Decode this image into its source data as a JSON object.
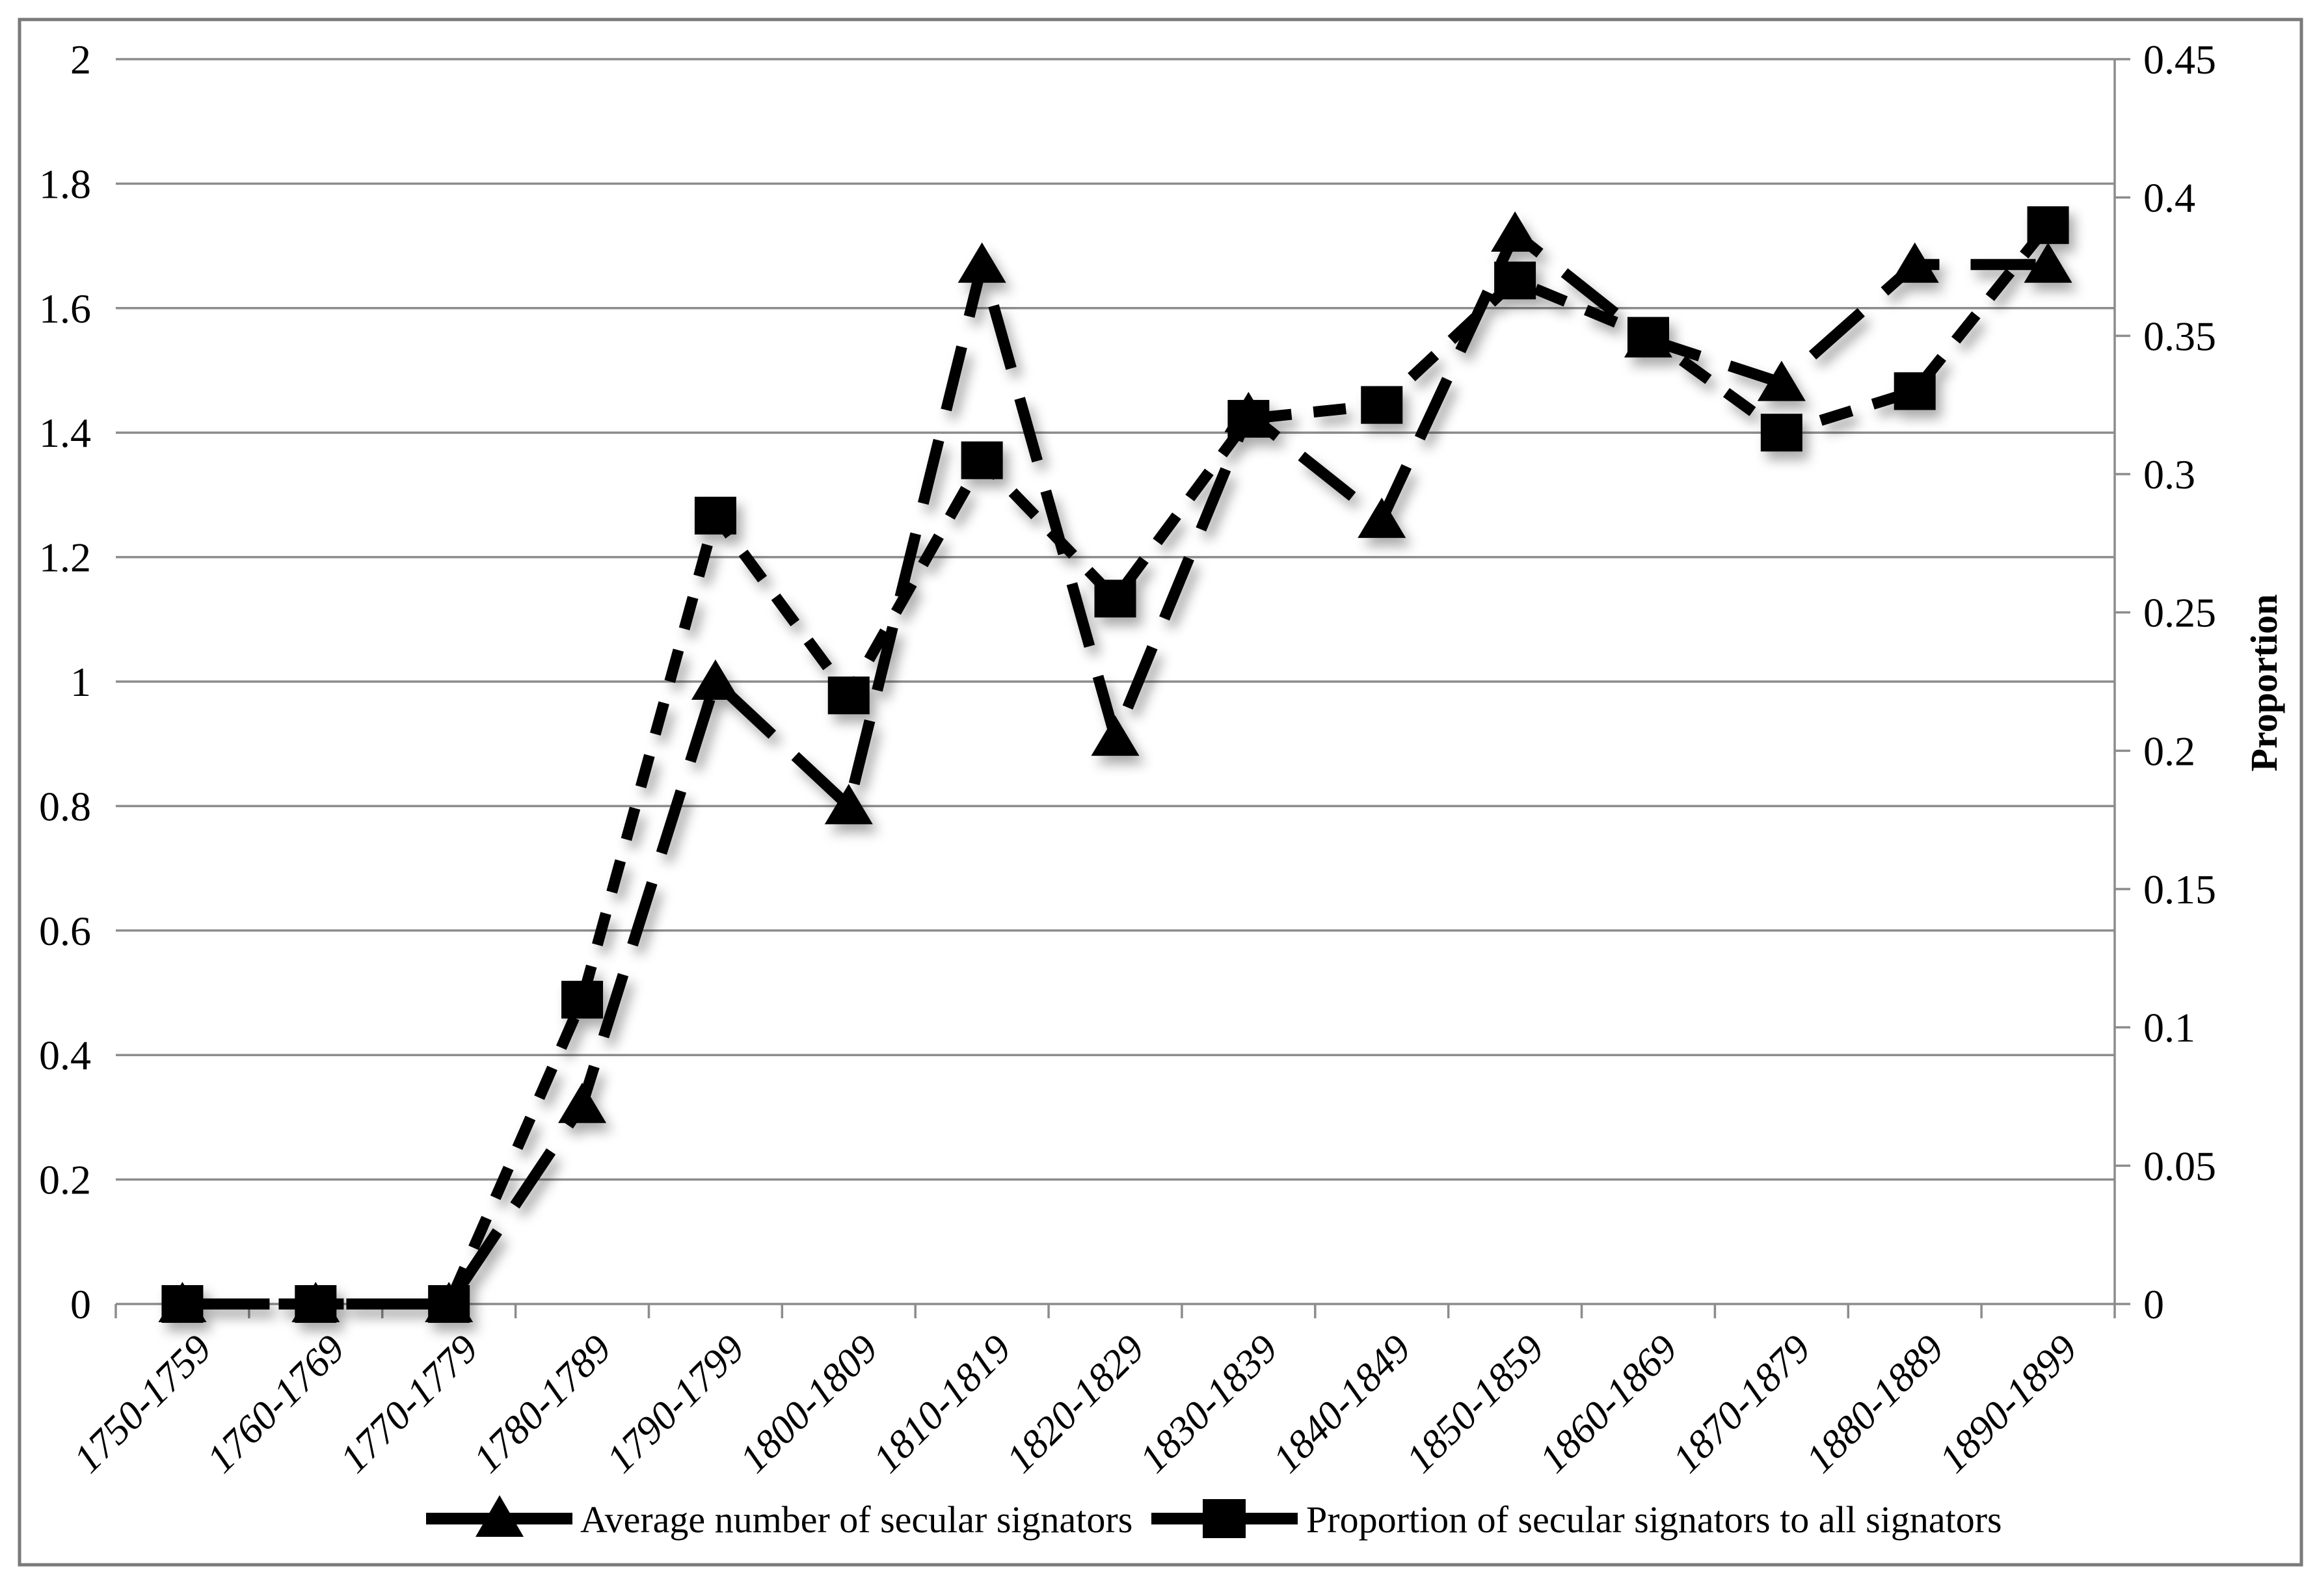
{
  "page": {
    "background": "#ffffff",
    "border_color": "#7a7a7a"
  },
  "chart_data": {
    "type": "line",
    "title": "",
    "categories": [
      "1750-1759",
      "1760-1769",
      "1770-1779",
      "1780-1789",
      "1790-1799",
      "1800-1809",
      "1810-1819",
      "1820-1829",
      "1830-1839",
      "1840-1849",
      "1850-1859",
      "1860-1869",
      "1870-1879",
      "1880-1889",
      "1890-1899"
    ],
    "series": [
      {
        "name": "Average number of secular signators",
        "axis": "left",
        "marker": "triangle",
        "line_dash": "long-dash",
        "color": "#000000",
        "values": [
          0,
          0,
          0,
          0.32,
          1.0,
          0.8,
          1.67,
          0.91,
          1.43,
          1.26,
          1.72,
          1.55,
          1.48,
          1.67,
          1.67
        ]
      },
      {
        "name": "Proportion of secular signators to all signators",
        "axis": "right",
        "marker": "square",
        "line_dash": "dash",
        "color": "#000000",
        "values": [
          0,
          0,
          0,
          0.11,
          0.285,
          0.22,
          0.305,
          0.255,
          0.32,
          0.325,
          0.37,
          0.35,
          0.315,
          0.33,
          0.39
        ]
      }
    ],
    "axes": {
      "left": {
        "min": 0,
        "max": 2,
        "tick_labels": [
          "2",
          "1.8",
          "1.6",
          "1.4",
          "1.2",
          "1",
          "0.8",
          "0.6",
          "0.4",
          "0.2",
          "0"
        ]
      },
      "right": {
        "min": 0,
        "max": 0.45,
        "tick_labels": [
          "0.45",
          "0.4",
          "0.35",
          "0.3",
          "0.25",
          "0.2",
          "0.15",
          "0.1",
          "0.05",
          "0"
        ],
        "title": "Proportion"
      },
      "x": {
        "label_rotation_deg": -45
      }
    },
    "legend": {
      "position": "bottom"
    },
    "grid": "horizontal-only",
    "gridline_color": "#8c8c8c",
    "ylim_left": [
      0,
      2
    ],
    "ylim_right": [
      0,
      0.45
    ]
  }
}
